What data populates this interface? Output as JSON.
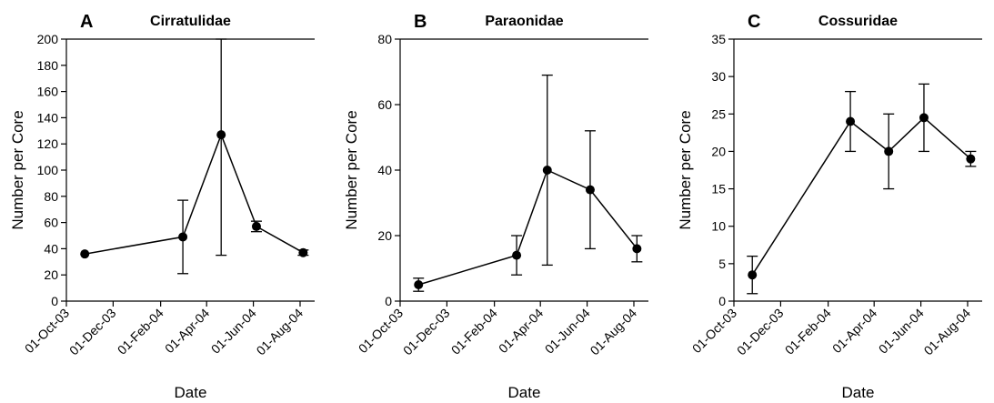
{
  "chart_data": [
    {
      "type": "line",
      "panel": "A",
      "title": "Cirratulidae",
      "xlabel": "Date",
      "ylabel": "Number per Core",
      "ylim": [
        0,
        200
      ],
      "yticks": [
        0,
        20,
        40,
        60,
        80,
        100,
        120,
        140,
        160,
        180,
        200
      ],
      "xlim": [
        "2003-10-01",
        "2004-08-20"
      ],
      "xticks": [
        {
          "date": "2003-10-01",
          "label": "01-Oct-03"
        },
        {
          "date": "2003-12-01",
          "label": "01-Dec-03"
        },
        {
          "date": "2004-02-01",
          "label": "01-Feb-04"
        },
        {
          "date": "2004-04-01",
          "label": "01-Apr-04"
        },
        {
          "date": "2004-06-01",
          "label": "01-Jun-04"
        },
        {
          "date": "2004-08-01",
          "label": "01-Aug-04"
        }
      ],
      "points": [
        {
          "x": "2003-10-25",
          "y": 36,
          "err_low": 36,
          "err_high": 36
        },
        {
          "x": "2004-03-01",
          "y": 49,
          "err_low": 21,
          "err_high": 77
        },
        {
          "x": "2004-04-20",
          "y": 127,
          "err_low": 35,
          "err_high": 200
        },
        {
          "x": "2004-06-05",
          "y": 57,
          "err_low": 53,
          "err_high": 61
        },
        {
          "x": "2004-08-05",
          "y": 37,
          "err_low": 35,
          "err_high": 39
        }
      ]
    },
    {
      "type": "line",
      "panel": "B",
      "title": "Paraonidae",
      "xlabel": "Date",
      "ylabel": "Number per Core",
      "ylim": [
        0,
        80
      ],
      "yticks": [
        0,
        20,
        40,
        60,
        80
      ],
      "xlim": [
        "2003-10-01",
        "2004-08-20"
      ],
      "xticks": [
        {
          "date": "2003-10-01",
          "label": "01-Oct-03"
        },
        {
          "date": "2003-12-01",
          "label": "01-Dec-03"
        },
        {
          "date": "2004-02-01",
          "label": "01-Feb-04"
        },
        {
          "date": "2004-04-01",
          "label": "01-Apr-04"
        },
        {
          "date": "2004-06-01",
          "label": "01-Jun-04"
        },
        {
          "date": "2004-08-01",
          "label": "01-Aug-04"
        }
      ],
      "points": [
        {
          "x": "2003-10-25",
          "y": 5,
          "err_low": 3,
          "err_high": 7
        },
        {
          "x": "2004-03-01",
          "y": 14,
          "err_low": 8,
          "err_high": 20
        },
        {
          "x": "2004-04-10",
          "y": 40,
          "err_low": 11,
          "err_high": 69
        },
        {
          "x": "2004-06-05",
          "y": 34,
          "err_low": 16,
          "err_high": 52
        },
        {
          "x": "2004-08-05",
          "y": 16,
          "err_low": 12,
          "err_high": 20
        }
      ]
    },
    {
      "type": "line",
      "panel": "C",
      "title": "Cossuridae",
      "xlabel": "Date",
      "ylabel": "Number per Core",
      "ylim": [
        0,
        35
      ],
      "yticks": [
        0,
        5,
        10,
        15,
        20,
        25,
        30,
        35
      ],
      "xlim": [
        "2003-10-01",
        "2004-08-20"
      ],
      "xticks": [
        {
          "date": "2003-10-01",
          "label": "01-Oct-03"
        },
        {
          "date": "2003-12-01",
          "label": "01-Dec-03"
        },
        {
          "date": "2004-02-01",
          "label": "01-Feb-04"
        },
        {
          "date": "2004-04-01",
          "label": "01-Apr-04"
        },
        {
          "date": "2004-06-01",
          "label": "01-Jun-04"
        },
        {
          "date": "2004-08-01",
          "label": "01-Aug-04"
        }
      ],
      "points": [
        {
          "x": "2003-10-25",
          "y": 3.5,
          "err_low": 1,
          "err_high": 6
        },
        {
          "x": "2004-03-01",
          "y": 24,
          "err_low": 20,
          "err_high": 28
        },
        {
          "x": "2004-04-20",
          "y": 20,
          "err_low": 15,
          "err_high": 25
        },
        {
          "x": "2004-06-05",
          "y": 24.5,
          "err_low": 20,
          "err_high": 29
        },
        {
          "x": "2004-08-05",
          "y": 19,
          "err_low": 18,
          "err_high": 20
        }
      ]
    }
  ]
}
